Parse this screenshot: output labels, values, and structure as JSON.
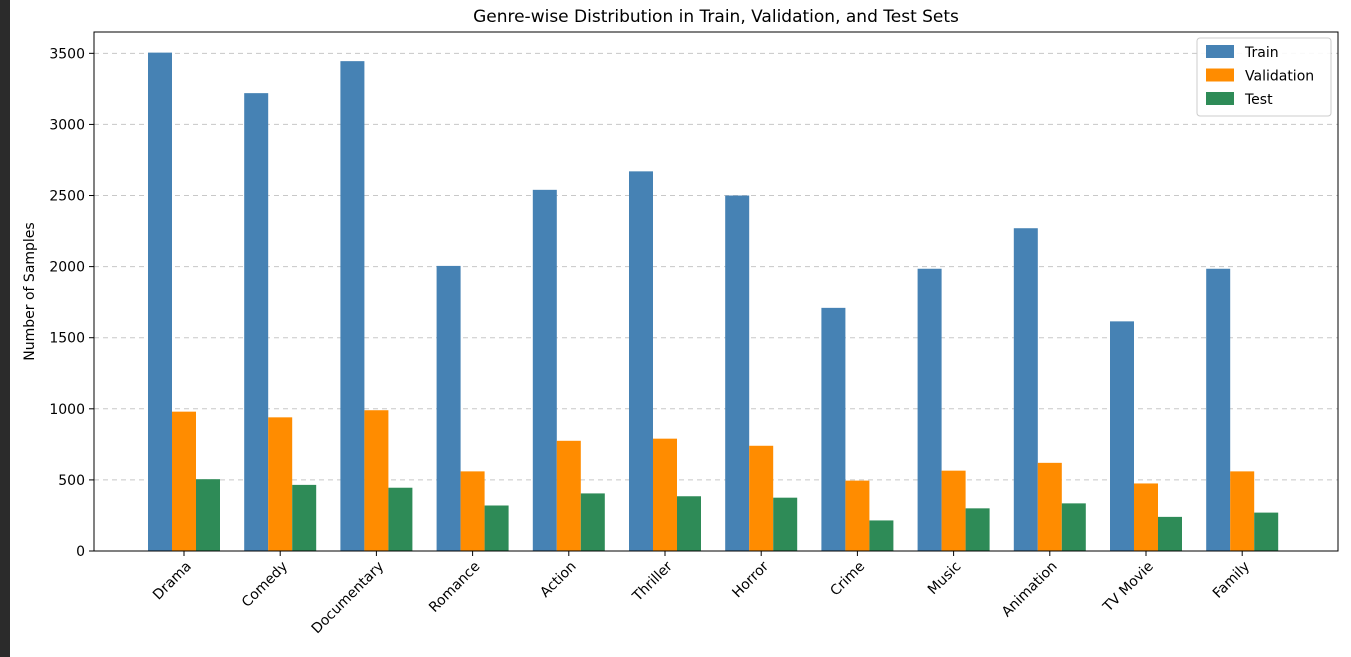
{
  "chart_data": {
    "type": "bar",
    "title": "Genre-wise Distribution in Train, Validation, and Test Sets",
    "xlabel": "",
    "ylabel": "Number of Samples",
    "ylim": [
      0,
      3650
    ],
    "yticks": [
      0,
      500,
      1000,
      1500,
      2000,
      2500,
      3000,
      3500
    ],
    "grid": "y, dashed",
    "legend_position": "top-right",
    "categories": [
      "Drama",
      "Comedy",
      "Documentary",
      "Romance",
      "Action",
      "Thriller",
      "Horror",
      "Crime",
      "Music",
      "Animation",
      "TV Movie",
      "Family"
    ],
    "series": [
      {
        "name": "Train",
        "color": "#4682b4",
        "values": [
          3505,
          3220,
          3445,
          2005,
          2540,
          2670,
          2500,
          1710,
          1985,
          2270,
          1615,
          1985
        ]
      },
      {
        "name": "Validation",
        "color": "#ff8c00",
        "values": [
          980,
          940,
          990,
          560,
          775,
          790,
          740,
          495,
          565,
          620,
          475,
          560
        ]
      },
      {
        "name": "Test",
        "color": "#2e8b57",
        "values": [
          505,
          465,
          445,
          320,
          405,
          385,
          375,
          215,
          300,
          335,
          240,
          270
        ]
      }
    ]
  }
}
